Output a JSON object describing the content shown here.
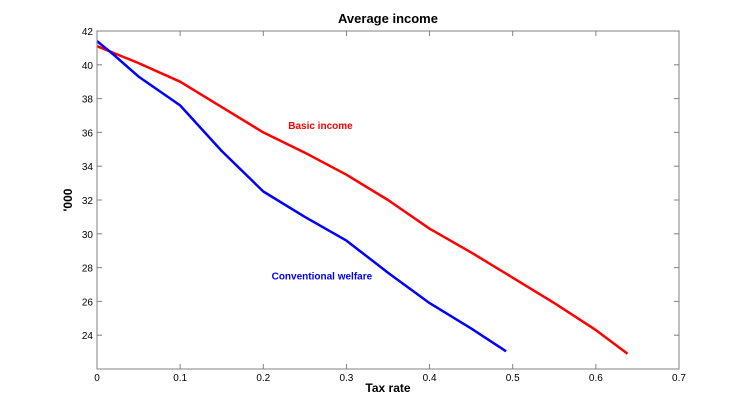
{
  "chart_data": {
    "type": "line",
    "title": "Average income",
    "xlabel": "Tax rate",
    "ylabel": "'000",
    "xlim": [
      0,
      0.7
    ],
    "ylim": [
      22,
      42
    ],
    "xticks": [
      0,
      0.1,
      0.2,
      0.3,
      0.4,
      0.5,
      0.6,
      0.7
    ],
    "xtick_labels": [
      "0",
      "0.1",
      "0.2",
      "0.3",
      "0.4",
      "0.5",
      "0.6",
      "0.7"
    ],
    "yticks": [
      24,
      26,
      28,
      30,
      32,
      34,
      36,
      38,
      40,
      42
    ],
    "ytick_labels": [
      "24",
      "26",
      "28",
      "30",
      "32",
      "34",
      "36",
      "38",
      "40",
      "42"
    ],
    "grid": false,
    "legend": "none (inline annotations)",
    "series": [
      {
        "name": "Basic income",
        "color": "#ff0000",
        "x": [
          0,
          0.05,
          0.1,
          0.15,
          0.2,
          0.25,
          0.3,
          0.35,
          0.4,
          0.45,
          0.5,
          0.55,
          0.6,
          0.638
        ],
        "y": [
          41.1,
          40.1,
          39.0,
          37.5,
          36.0,
          34.8,
          33.5,
          32.0,
          30.3,
          28.9,
          27.4,
          25.9,
          24.3,
          22.9
        ]
      },
      {
        "name": "Conventional welfare",
        "color": "#0000ff",
        "x": [
          0,
          0.02,
          0.05,
          0.1,
          0.15,
          0.2,
          0.25,
          0.3,
          0.35,
          0.4,
          0.45,
          0.492
        ],
        "y": [
          41.4,
          40.6,
          39.3,
          37.6,
          34.9,
          32.5,
          31.0,
          29.6,
          27.7,
          25.9,
          24.4,
          23.05
        ]
      }
    ],
    "annotations": [
      {
        "text": "Basic income",
        "x": 0.23,
        "y": 36.2,
        "color": "#ff0000"
      },
      {
        "text": "Conventional welfare",
        "x": 0.21,
        "y": 27.3,
        "color": "#0000ff"
      }
    ]
  }
}
